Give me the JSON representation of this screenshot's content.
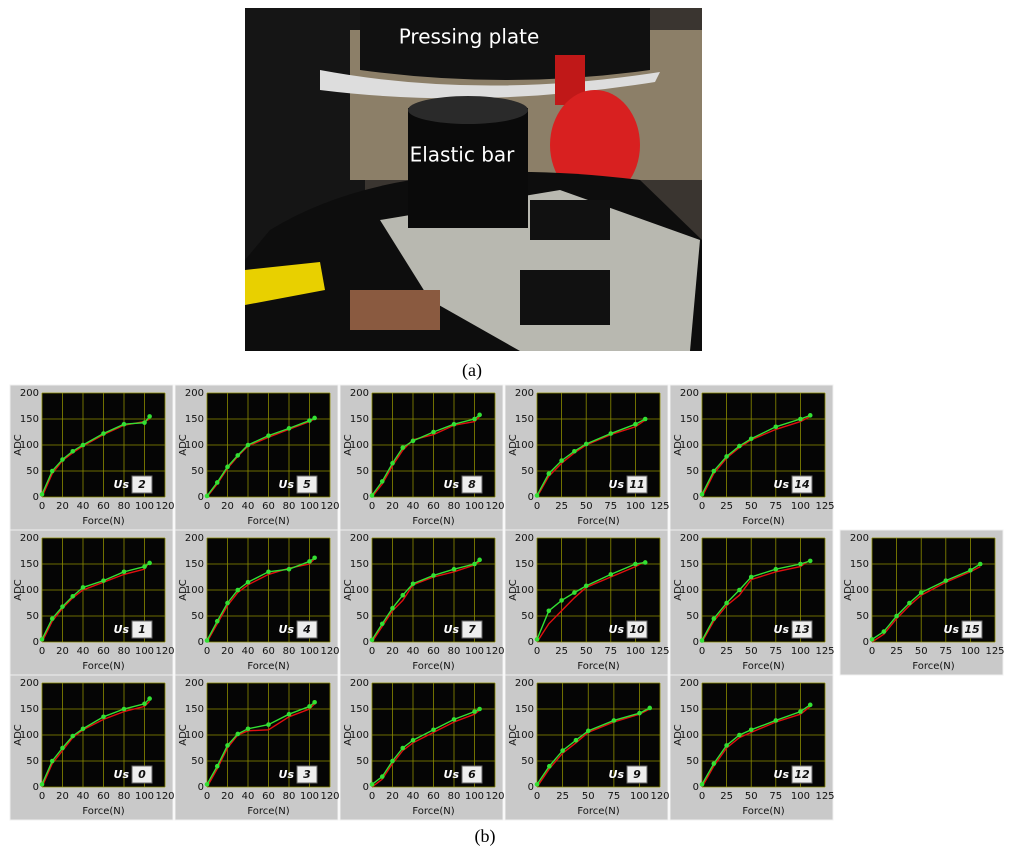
{
  "photo": {
    "labels": [
      "Pressing plate",
      "Elastic bar"
    ],
    "caption": "(a)"
  },
  "caption_b": "(b)",
  "chart_data": [
    {
      "type": "line",
      "tag": "Us",
      "id": "2",
      "y_label": "ADC",
      "x_label": "Force(N)",
      "xlim": [
        0,
        120
      ],
      "xticks": [
        0,
        20,
        40,
        60,
        80,
        100,
        120
      ],
      "ylim": [
        0,
        200
      ],
      "yticks": [
        0,
        50,
        100,
        150,
        200
      ],
      "grid": true,
      "x": [
        0,
        10,
        20,
        30,
        40,
        60,
        80,
        100,
        105
      ],
      "series": [
        {
          "color": "#e01010",
          "values": [
            0,
            45,
            70,
            85,
            98,
            120,
            138,
            145,
            150
          ]
        },
        {
          "color": "#33e033",
          "markers": true,
          "values": [
            5,
            50,
            72,
            88,
            100,
            122,
            140,
            143,
            155
          ]
        }
      ]
    },
    {
      "type": "line",
      "tag": "Us",
      "id": "5",
      "y_label": "ADC",
      "x_label": "Force(N)",
      "xlim": [
        0,
        120
      ],
      "xticks": [
        0,
        20,
        40,
        60,
        80,
        100,
        120
      ],
      "ylim": [
        0,
        200
      ],
      "yticks": [
        0,
        50,
        100,
        150,
        200
      ],
      "grid": true,
      "x": [
        0,
        10,
        20,
        30,
        40,
        60,
        80,
        100,
        105
      ],
      "series": [
        {
          "color": "#e01010",
          "values": [
            0,
            25,
            55,
            78,
            98,
            115,
            130,
            145,
            150
          ]
        },
        {
          "color": "#33e033",
          "markers": true,
          "values": [
            2,
            28,
            58,
            80,
            100,
            118,
            132,
            147,
            152
          ]
        }
      ]
    },
    {
      "type": "line",
      "tag": "Us",
      "id": "8",
      "y_label": "ADC",
      "x_label": "Force(N)",
      "xlim": [
        0,
        120
      ],
      "xticks": [
        0,
        20,
        40,
        60,
        80,
        100,
        120
      ],
      "ylim": [
        0,
        200
      ],
      "yticks": [
        0,
        50,
        100,
        150,
        200
      ],
      "grid": true,
      "x": [
        0,
        10,
        20,
        30,
        40,
        60,
        80,
        100,
        105
      ],
      "series": [
        {
          "color": "#e01010",
          "values": [
            0,
            25,
            60,
            90,
            110,
            120,
            138,
            145,
            155
          ]
        },
        {
          "color": "#33e033",
          "markers": true,
          "values": [
            3,
            30,
            65,
            95,
            108,
            125,
            140,
            150,
            158
          ]
        }
      ]
    },
    {
      "type": "line",
      "tag": "Us",
      "id": "11",
      "y_label": "ADC",
      "x_label": "Force(N)",
      "xlim": [
        0,
        125
      ],
      "xticks": [
        0,
        25,
        50,
        75,
        100,
        125
      ],
      "ylim": [
        0,
        200
      ],
      "yticks": [
        0,
        50,
        100,
        150,
        200
      ],
      "grid": true,
      "x": [
        0,
        12,
        25,
        38,
        50,
        75,
        100,
        110
      ],
      "series": [
        {
          "color": "#e01010",
          "values": [
            0,
            40,
            65,
            85,
            100,
            120,
            135,
            148
          ]
        },
        {
          "color": "#33e033",
          "markers": true,
          "values": [
            3,
            45,
            70,
            88,
            102,
            122,
            140,
            150
          ]
        }
      ]
    },
    {
      "type": "line",
      "tag": "Us",
      "id": "14",
      "y_label": "ADC",
      "x_label": "Force(N)",
      "xlim": [
        0,
        125
      ],
      "xticks": [
        0,
        25,
        50,
        75,
        100,
        125
      ],
      "ylim": [
        0,
        200
      ],
      "yticks": [
        0,
        50,
        100,
        150,
        200
      ],
      "grid": true,
      "x": [
        0,
        12,
        25,
        38,
        50,
        75,
        100,
        110
      ],
      "series": [
        {
          "color": "#e01010",
          "values": [
            0,
            45,
            75,
            95,
            110,
            130,
            145,
            155
          ]
        },
        {
          "color": "#33e033",
          "markers": true,
          "values": [
            5,
            50,
            78,
            98,
            112,
            135,
            150,
            157
          ]
        }
      ]
    },
    {
      "type": "line",
      "tag": "Us",
      "id": "1",
      "y_label": "ADC",
      "x_label": "Force(N)",
      "xlim": [
        0,
        120
      ],
      "xticks": [
        0,
        20,
        40,
        60,
        80,
        100,
        120
      ],
      "ylim": [
        0,
        200
      ],
      "yticks": [
        0,
        50,
        100,
        150,
        200
      ],
      "grid": true,
      "x": [
        0,
        10,
        20,
        30,
        40,
        60,
        80,
        100,
        105
      ],
      "series": [
        {
          "color": "#e01010",
          "values": [
            0,
            40,
            65,
            85,
            100,
            115,
            130,
            140,
            155
          ]
        },
        {
          "color": "#33e033",
          "markers": true,
          "values": [
            5,
            45,
            68,
            88,
            105,
            118,
            135,
            145,
            152
          ]
        }
      ]
    },
    {
      "type": "line",
      "tag": "Us",
      "id": "4",
      "y_label": "ADC",
      "x_label": "Force(N)",
      "xlim": [
        0,
        120
      ],
      "xticks": [
        0,
        20,
        40,
        60,
        80,
        100,
        120
      ],
      "ylim": [
        0,
        200
      ],
      "yticks": [
        0,
        50,
        100,
        150,
        200
      ],
      "grid": true,
      "x": [
        0,
        10,
        20,
        30,
        40,
        60,
        80,
        100,
        105
      ],
      "series": [
        {
          "color": "#e01010",
          "values": [
            0,
            35,
            70,
            95,
            110,
            130,
            142,
            150,
            160
          ]
        },
        {
          "color": "#33e033",
          "markers": true,
          "values": [
            3,
            40,
            75,
            100,
            115,
            135,
            140,
            155,
            162
          ]
        }
      ]
    },
    {
      "type": "line",
      "tag": "Us",
      "id": "7",
      "y_label": "ADC",
      "x_label": "Force(N)",
      "xlim": [
        0,
        120
      ],
      "xticks": [
        0,
        20,
        40,
        60,
        80,
        100,
        120
      ],
      "ylim": [
        0,
        200
      ],
      "yticks": [
        0,
        50,
        100,
        150,
        200
      ],
      "grid": true,
      "x": [
        0,
        10,
        20,
        30,
        40,
        60,
        80,
        100,
        105
      ],
      "series": [
        {
          "color": "#e01010",
          "values": [
            0,
            30,
            60,
            80,
            110,
            125,
            135,
            148,
            155
          ]
        },
        {
          "color": "#33e033",
          "markers": true,
          "values": [
            4,
            35,
            65,
            90,
            112,
            128,
            140,
            150,
            158
          ]
        }
      ]
    },
    {
      "type": "line",
      "tag": "Us",
      "id": "10",
      "y_label": "ADC",
      "x_label": "Force(N)",
      "xlim": [
        0,
        125
      ],
      "xticks": [
        0,
        25,
        50,
        75,
        100,
        125
      ],
      "ylim": [
        0,
        200
      ],
      "yticks": [
        0,
        50,
        100,
        150,
        200
      ],
      "grid": true,
      "x": [
        0,
        12,
        25,
        38,
        50,
        75,
        100,
        110
      ],
      "series": [
        {
          "color": "#e01010",
          "values": [
            0,
            35,
            60,
            85,
            105,
            125,
            145,
            155
          ]
        },
        {
          "color": "#33e033",
          "markers": true,
          "values": [
            5,
            60,
            80,
            95,
            108,
            130,
            150,
            153
          ]
        }
      ]
    },
    {
      "type": "line",
      "tag": "Us",
      "id": "13",
      "y_label": "ADC",
      "x_label": "Force(N)",
      "xlim": [
        0,
        125
      ],
      "xticks": [
        0,
        25,
        50,
        75,
        100,
        125
      ],
      "ylim": [
        0,
        200
      ],
      "yticks": [
        0,
        50,
        100,
        150,
        200
      ],
      "grid": true,
      "x": [
        0,
        12,
        25,
        38,
        50,
        75,
        100,
        110
      ],
      "series": [
        {
          "color": "#e01010",
          "values": [
            0,
            40,
            70,
            90,
            120,
            135,
            145,
            158
          ]
        },
        {
          "color": "#33e033",
          "markers": true,
          "values": [
            3,
            45,
            75,
            100,
            125,
            140,
            150,
            156
          ]
        }
      ]
    },
    {
      "type": "line",
      "tag": "Us",
      "id": "15",
      "y_label": "ADC",
      "x_label": "Force(N)",
      "xlim": [
        0,
        125
      ],
      "xticks": [
        0,
        25,
        50,
        75,
        100,
        125
      ],
      "ylim": [
        0,
        200
      ],
      "yticks": [
        0,
        50,
        100,
        150,
        200
      ],
      "grid": true,
      "x": [
        0,
        12,
        25,
        38,
        50,
        75,
        100,
        110
      ],
      "series": [
        {
          "color": "#e01010",
          "values": [
            0,
            15,
            45,
            70,
            90,
            115,
            135,
            145
          ]
        },
        {
          "color": "#33e033",
          "markers": true,
          "values": [
            5,
            20,
            50,
            75,
            95,
            118,
            138,
            150
          ]
        }
      ]
    },
    {
      "type": "line",
      "tag": "Us",
      "id": "0",
      "y_label": "ADC",
      "x_label": "Force(N)",
      "xlim": [
        0,
        120
      ],
      "xticks": [
        0,
        20,
        40,
        60,
        80,
        100,
        120
      ],
      "ylim": [
        0,
        200
      ],
      "yticks": [
        0,
        50,
        100,
        150,
        200
      ],
      "grid": true,
      "x": [
        0,
        10,
        20,
        30,
        40,
        60,
        80,
        100,
        105
      ],
      "series": [
        {
          "color": "#e01010",
          "values": [
            0,
            45,
            70,
            95,
            110,
            130,
            145,
            155,
            165
          ]
        },
        {
          "color": "#33e033",
          "markers": true,
          "values": [
            5,
            50,
            75,
            98,
            112,
            135,
            150,
            160,
            170
          ]
        }
      ]
    },
    {
      "type": "line",
      "tag": "Us",
      "id": "3",
      "y_label": "ADC",
      "x_label": "Force(N)",
      "xlim": [
        0,
        120
      ],
      "xticks": [
        0,
        20,
        40,
        60,
        80,
        100,
        120
      ],
      "ylim": [
        0,
        200
      ],
      "yticks": [
        0,
        50,
        100,
        150,
        200
      ],
      "grid": true,
      "x": [
        0,
        10,
        20,
        30,
        40,
        60,
        80,
        100,
        105
      ],
      "series": [
        {
          "color": "#e01010",
          "values": [
            0,
            35,
            75,
            100,
            108,
            110,
            135,
            150,
            160
          ]
        },
        {
          "color": "#33e033",
          "markers": true,
          "values": [
            5,
            40,
            80,
            102,
            112,
            120,
            140,
            155,
            163
          ]
        }
      ]
    },
    {
      "type": "line",
      "tag": "Us",
      "id": "6",
      "y_label": "ADC",
      "x_label": "Force(N)",
      "xlim": [
        0,
        120
      ],
      "xticks": [
        0,
        20,
        40,
        60,
        80,
        100,
        120
      ],
      "ylim": [
        0,
        200
      ],
      "yticks": [
        0,
        50,
        100,
        150,
        200
      ],
      "grid": true,
      "x": [
        0,
        10,
        20,
        30,
        40,
        60,
        80,
        100,
        105
      ],
      "series": [
        {
          "color": "#e01010",
          "values": [
            0,
            15,
            45,
            70,
            85,
            105,
            125,
            140,
            148
          ]
        },
        {
          "color": "#33e033",
          "markers": true,
          "values": [
            5,
            20,
            50,
            75,
            90,
            110,
            130,
            145,
            150
          ]
        }
      ]
    },
    {
      "type": "line",
      "tag": "Us",
      "id": "9",
      "y_label": "ADC",
      "x_label": "Force(N)",
      "xlim": [
        0,
        120
      ],
      "xticks": [
        0,
        25,
        50,
        75,
        100,
        120
      ],
      "ylim": [
        0,
        200
      ],
      "yticks": [
        0,
        50,
        100,
        150,
        200
      ],
      "grid": true,
      "x": [
        0,
        12,
        25,
        38,
        50,
        75,
        100,
        110
      ],
      "series": [
        {
          "color": "#e01010",
          "values": [
            0,
            35,
            65,
            85,
            105,
            125,
            140,
            150
          ]
        },
        {
          "color": "#33e033",
          "markers": true,
          "values": [
            5,
            40,
            70,
            90,
            108,
            128,
            142,
            152
          ]
        }
      ]
    },
    {
      "type": "line",
      "tag": "Us",
      "id": "12",
      "y_label": "ADC",
      "x_label": "Force(N)",
      "xlim": [
        0,
        125
      ],
      "xticks": [
        0,
        25,
        50,
        75,
        100,
        125
      ],
      "ylim": [
        0,
        200
      ],
      "yticks": [
        0,
        50,
        100,
        150,
        200
      ],
      "grid": true,
      "x": [
        0,
        12,
        25,
        38,
        50,
        75,
        100,
        110
      ],
      "series": [
        {
          "color": "#e01010",
          "values": [
            0,
            40,
            75,
            95,
            105,
            125,
            140,
            155
          ]
        },
        {
          "color": "#33e033",
          "markers": true,
          "values": [
            5,
            45,
            80,
            100,
            110,
            128,
            145,
            158
          ]
        }
      ]
    }
  ]
}
